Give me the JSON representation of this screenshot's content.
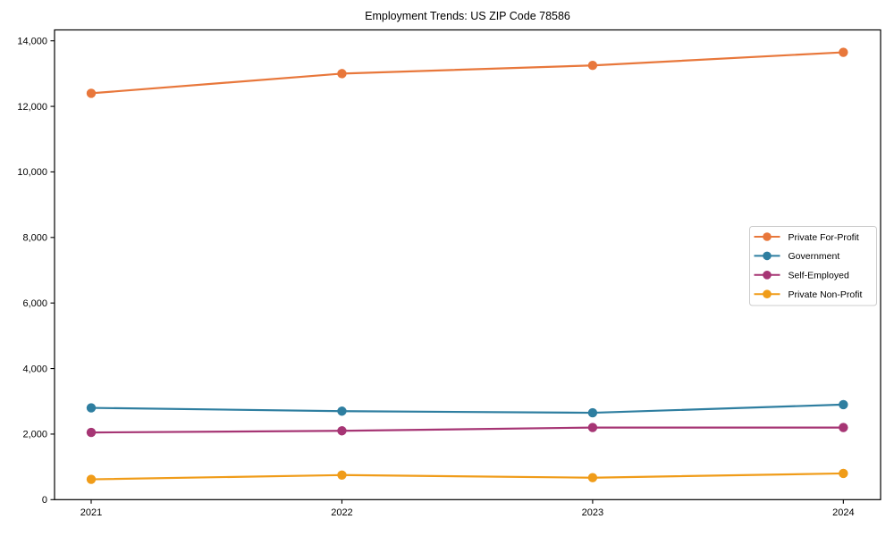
{
  "figure": {
    "background": "#ffffff"
  },
  "chart_data": {
    "type": "line",
    "title": "Employment Trends: US ZIP Code 78586",
    "x": [
      "2021",
      "2022",
      "2023",
      "2024"
    ],
    "xlabel": "",
    "ylabel": "",
    "ylim": [
      0,
      14350
    ],
    "yticks": [
      0,
      2000,
      4000,
      6000,
      8000,
      10000,
      12000,
      14000
    ],
    "ytick_labels": [
      "0",
      "2,000",
      "4,000",
      "6,000",
      "8,000",
      "10,000",
      "12,000",
      "14,000"
    ],
    "grid": false,
    "legend_position": "center right",
    "axis_color": "#000000",
    "text_color": "#000000",
    "series": [
      {
        "name": "Private For-Profit",
        "color": "#E8773B",
        "values": [
          12400,
          13000,
          13250,
          13650
        ]
      },
      {
        "name": "Government",
        "color": "#2E7EA0",
        "values": [
          2800,
          2700,
          2650,
          2900
        ]
      },
      {
        "name": "Self-Employed",
        "color": "#A63574",
        "values": [
          2050,
          2100,
          2200,
          2200
        ]
      },
      {
        "name": "Private Non-Profit",
        "color": "#F09C19",
        "values": [
          620,
          750,
          670,
          800
        ]
      }
    ]
  }
}
